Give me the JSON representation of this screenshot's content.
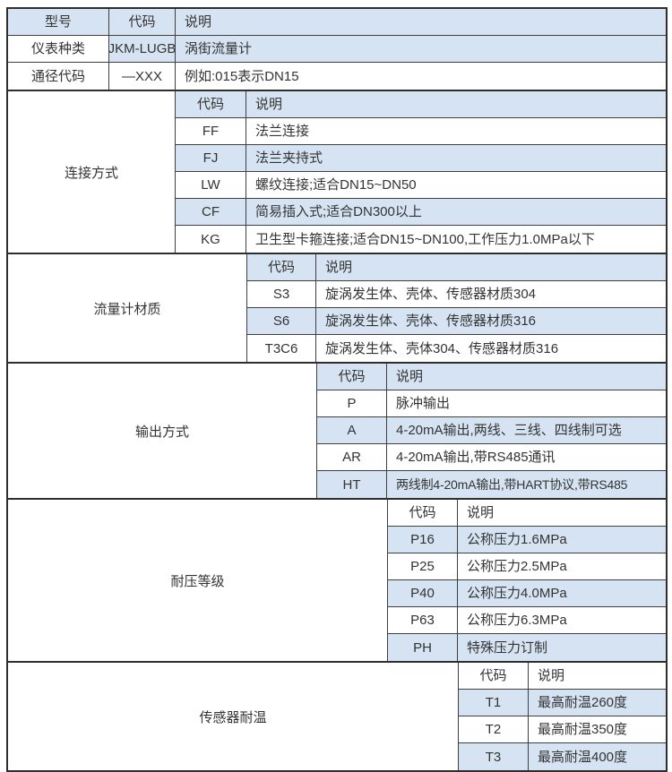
{
  "colors": {
    "row_blue": "#d6e3f2",
    "row_white": "#ffffff",
    "border_inner": "#3f3f3f",
    "border_outer": "#2e2e2e",
    "text": "#333333"
  },
  "top": {
    "header": {
      "model_label": "型号",
      "code_label": "代码",
      "desc_label": "说明"
    },
    "rows": [
      {
        "name": "仪表种类",
        "code": "JKM-LUGB",
        "desc": "涡街流量计"
      },
      {
        "name": "通径代码",
        "code": "—XXX",
        "desc": "例如:015表示DN15"
      }
    ]
  },
  "sections": [
    {
      "category": "连接方式",
      "header": {
        "code": "代码",
        "desc": "说明"
      },
      "rows": [
        {
          "code": "FF",
          "desc": "法兰连接"
        },
        {
          "code": "FJ",
          "desc": "法兰夹持式"
        },
        {
          "code": "LW",
          "desc": "螺纹连接;适合DN15~DN50"
        },
        {
          "code": "CF",
          "desc": "简易插入式;适合DN300以上"
        },
        {
          "code": "KG",
          "desc": "卫生型卡箍连接;适合DN15~DN100,工作压力1.0MPa以下"
        }
      ]
    },
    {
      "category": "流量计材质",
      "header": {
        "code": "代码",
        "desc": "说明"
      },
      "rows": [
        {
          "code": "S3",
          "desc": "旋涡发生体、壳体、传感器材质304"
        },
        {
          "code": "S6",
          "desc": "旋涡发生体、壳体、传感器材质316"
        },
        {
          "code": "T3C6",
          "desc": "旋涡发生体、壳体304、传感器材质316"
        }
      ]
    },
    {
      "category": "输出方式",
      "header": {
        "code": "代码",
        "desc": "说明"
      },
      "rows": [
        {
          "code": "P",
          "desc": "脉冲输出"
        },
        {
          "code": "A",
          "desc": "4-20mA输出,两线、三线、四线制可选"
        },
        {
          "code": "AR",
          "desc": "4-20mA输出,带RS485通讯"
        },
        {
          "code": "HT",
          "desc": "两线制4-20mA输出,带HART协议,带RS485"
        }
      ]
    },
    {
      "category": "耐压等级",
      "header": {
        "code": "代码",
        "desc": "说明"
      },
      "rows": [
        {
          "code": "P16",
          "desc": "公称压力1.6MPa"
        },
        {
          "code": "P25",
          "desc": "公称压力2.5MPa"
        },
        {
          "code": "P40",
          "desc": "公称压力4.0MPa"
        },
        {
          "code": "P63",
          "desc": "公称压力6.3MPa"
        },
        {
          "code": "PH",
          "desc": "特殊压力订制"
        }
      ]
    },
    {
      "category": "传感器耐温",
      "header": {
        "code": "代码",
        "desc": "说明"
      },
      "rows": [
        {
          "code": "T1",
          "desc": "最高耐温260度"
        },
        {
          "code": "T2",
          "desc": "最高耐温350度"
        },
        {
          "code": "T3",
          "desc": "最高耐温400度"
        }
      ]
    }
  ]
}
